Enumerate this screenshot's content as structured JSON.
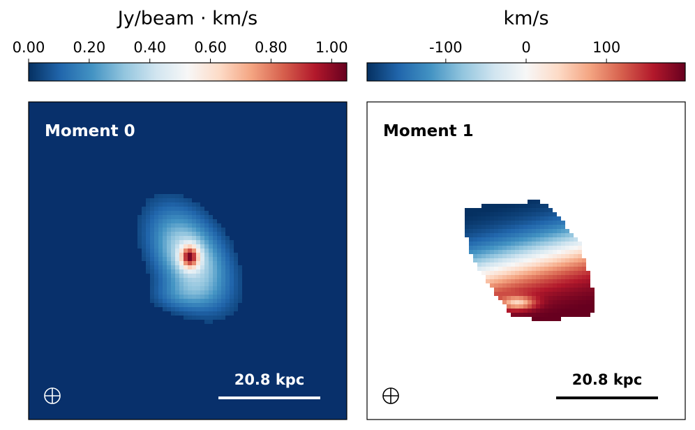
{
  "chart_data": [
    {
      "type": "heatmap",
      "title": "Moment 0",
      "colorbar": {
        "label": "Jy/beam · km/s",
        "colormap": "RdBu_r",
        "range": [
          0.0,
          1.05
        ],
        "ticks": [
          0.0,
          0.2,
          0.4,
          0.6,
          0.8,
          1.0
        ],
        "tick_labels": [
          "0.00",
          "0.20",
          "0.40",
          "0.60",
          "0.80",
          "1.00"
        ],
        "position": "top"
      },
      "scalebar_label": "20.8 kpc",
      "beam_symbol": "⊕",
      "background_value": 0.0,
      "source": {
        "peak_value": 1.05,
        "orientation": "elongated NW-SE, compact bright core"
      }
    },
    {
      "type": "heatmap",
      "title": "Moment 1",
      "colorbar": {
        "label": "km/s",
        "colormap": "RdBu_r",
        "range": [
          -198,
          198
        ],
        "ticks": [
          -100,
          0,
          100
        ],
        "tick_labels": [
          "-100",
          "0",
          "100"
        ],
        "position": "top"
      },
      "scalebar_label": "20.8 kpc",
      "beam_symbol": "⊕",
      "source": {
        "velocity_gradient": "blueshifted to north-east, redshifted to south-west"
      }
    }
  ],
  "colors": {
    "rdbu_stops": [
      "#053061",
      "#2166ac",
      "#4393c3",
      "#92c5de",
      "#d1e5f0",
      "#f7f7f7",
      "#fddbc7",
      "#f4a582",
      "#d6604d",
      "#b2182b",
      "#67001f"
    ],
    "m0_background": "#08306b",
    "panel_text_light": "#ffffff",
    "panel_text_dark": "#000000"
  }
}
